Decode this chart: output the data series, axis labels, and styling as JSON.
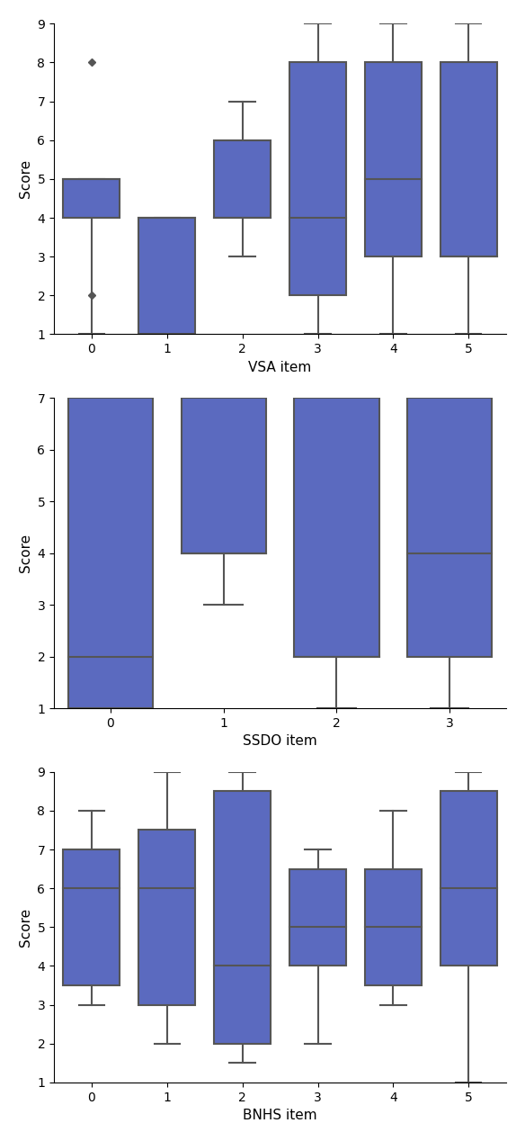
{
  "box_color": "#5b6abf",
  "box_edgecolor": "#555555",
  "median_color": "#555555",
  "whisker_color": "#555555",
  "cap_color": "#555555",
  "flier_color": "#555555",
  "linewidth": 1.5,
  "box_width": 0.75,
  "vsa": {
    "xlabel": "VSA item",
    "ylabel": "Score",
    "ylim": [
      1,
      9
    ],
    "yticks": [
      1,
      2,
      3,
      4,
      5,
      6,
      7,
      8,
      9
    ],
    "xticks": [
      0,
      1,
      2,
      3,
      4,
      5
    ],
    "xlim": [
      -0.5,
      5.5
    ],
    "boxes": [
      {
        "x": 0,
        "q1": 4.0,
        "median": 5.0,
        "q3": 5.0,
        "whislo": 1.0,
        "whishi": 5.0,
        "fliers": [
          2.0,
          8.0
        ]
      },
      {
        "x": 1,
        "q1": 1.0,
        "median": 4.0,
        "q3": 4.0,
        "whislo": 1.0,
        "whishi": 4.0,
        "fliers": []
      },
      {
        "x": 2,
        "q1": 4.0,
        "median": 4.0,
        "q3": 6.0,
        "whislo": 3.0,
        "whishi": 7.0,
        "fliers": []
      },
      {
        "x": 3,
        "q1": 2.0,
        "median": 4.0,
        "q3": 8.0,
        "whislo": 1.0,
        "whishi": 9.0,
        "fliers": []
      },
      {
        "x": 4,
        "q1": 3.0,
        "median": 5.0,
        "q3": 8.0,
        "whislo": 1.0,
        "whishi": 9.0,
        "fliers": []
      },
      {
        "x": 5,
        "q1": 3.0,
        "median": 3.0,
        "q3": 8.0,
        "whislo": 1.0,
        "whishi": 9.0,
        "fliers": []
      }
    ]
  },
  "ssdo": {
    "xlabel": "SSDO item",
    "ylabel": "Score",
    "ylim": [
      1,
      7
    ],
    "yticks": [
      1,
      2,
      3,
      4,
      5,
      6,
      7
    ],
    "xticks": [
      0,
      1,
      2,
      3
    ],
    "xlim": [
      -0.5,
      3.5
    ],
    "boxes": [
      {
        "x": 0,
        "q1": 1.0,
        "median": 2.0,
        "q3": 7.0,
        "whislo": 1.0,
        "whishi": 7.0,
        "fliers": []
      },
      {
        "x": 1,
        "q1": 4.0,
        "median": 4.0,
        "q3": 7.0,
        "whislo": 3.0,
        "whishi": 7.0,
        "fliers": []
      },
      {
        "x": 2,
        "q1": 2.0,
        "median": 2.0,
        "q3": 7.0,
        "whislo": 1.0,
        "whishi": 7.0,
        "fliers": []
      },
      {
        "x": 3,
        "q1": 2.0,
        "median": 4.0,
        "q3": 7.0,
        "whislo": 1.0,
        "whishi": 7.0,
        "fliers": []
      }
    ]
  },
  "bnhs": {
    "xlabel": "BNHS item",
    "ylabel": "Score",
    "ylim": [
      1,
      9
    ],
    "yticks": [
      1,
      2,
      3,
      4,
      5,
      6,
      7,
      8,
      9
    ],
    "xticks": [
      0,
      1,
      2,
      3,
      4,
      5
    ],
    "xlim": [
      -0.5,
      5.5
    ],
    "boxes": [
      {
        "x": 0,
        "q1": 3.5,
        "median": 6.0,
        "q3": 7.0,
        "whislo": 3.0,
        "whishi": 8.0,
        "fliers": []
      },
      {
        "x": 1,
        "q1": 3.0,
        "median": 6.0,
        "q3": 7.5,
        "whislo": 2.0,
        "whishi": 9.0,
        "fliers": []
      },
      {
        "x": 2,
        "q1": 2.0,
        "median": 4.0,
        "q3": 8.5,
        "whislo": 1.5,
        "whishi": 9.0,
        "fliers": []
      },
      {
        "x": 3,
        "q1": 4.0,
        "median": 5.0,
        "q3": 6.5,
        "whislo": 2.0,
        "whishi": 7.0,
        "fliers": []
      },
      {
        "x": 4,
        "q1": 3.5,
        "median": 5.0,
        "q3": 6.5,
        "whislo": 3.0,
        "whishi": 8.0,
        "fliers": []
      },
      {
        "x": 5,
        "q1": 4.0,
        "median": 6.0,
        "q3": 8.5,
        "whislo": 1.0,
        "whishi": 9.0,
        "fliers": []
      }
    ]
  }
}
